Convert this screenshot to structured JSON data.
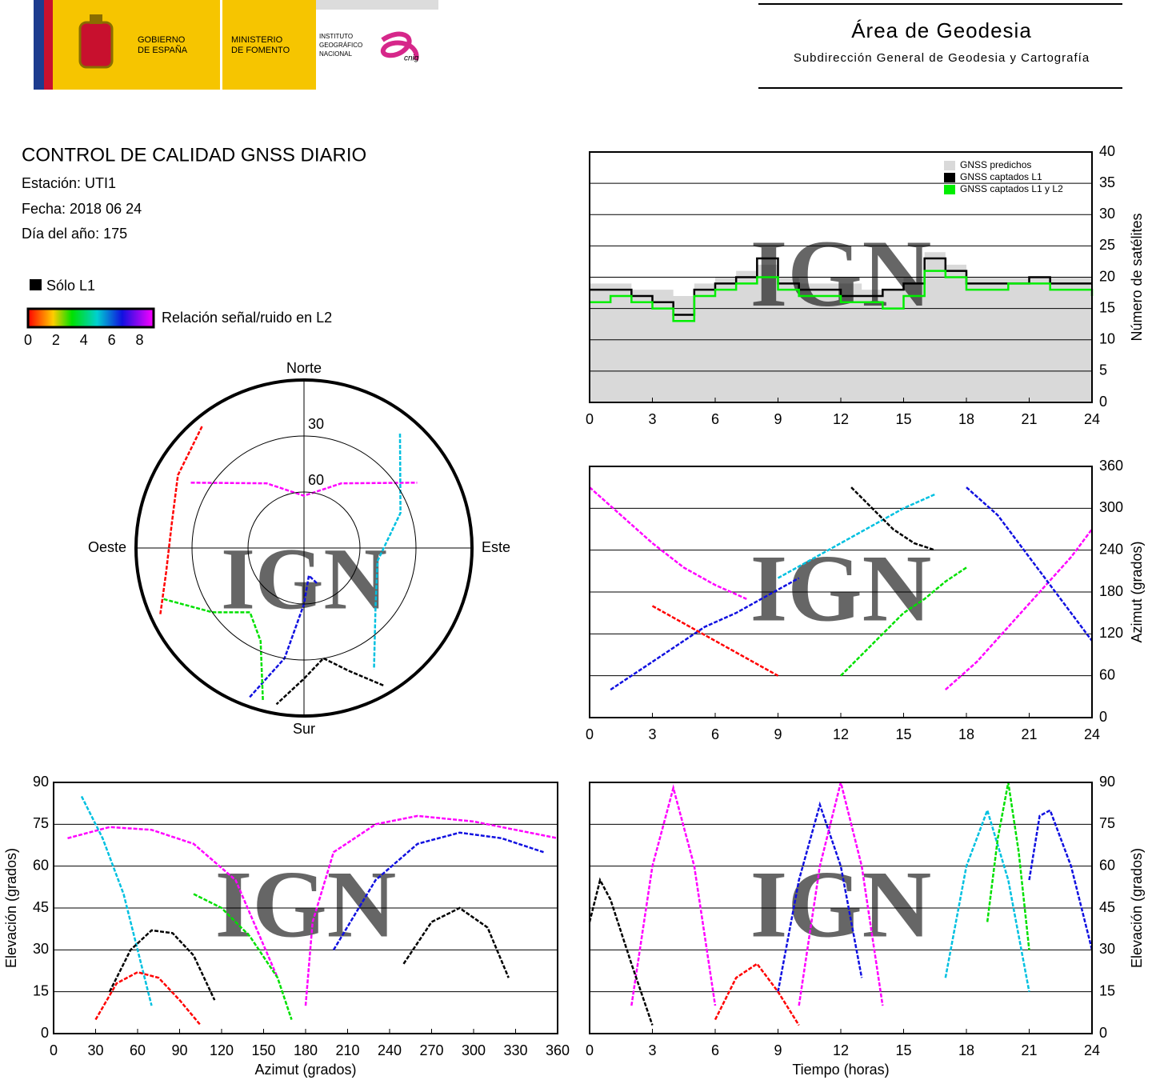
{
  "header": {
    "gobierno": [
      "GOBIERNO",
      "DE ESPAÑA"
    ],
    "ministerio": [
      "MINISTERIO",
      "DE FOMENTO"
    ],
    "instituto": [
      "INSTITUTO",
      "GEOGRÁFICO",
      "NACIONAL"
    ],
    "cnig": "cnig",
    "area": "Área de Geodesia",
    "subdireccion": "Subdirección General de Geodesia y Cartografía"
  },
  "report": {
    "title": "CONTROL DE CALIDAD GNSS DIARIO",
    "station": "Estación: UTI1",
    "date": "Fecha: 2018 06 24",
    "doy": "Día del año: 175"
  },
  "legend": {
    "only_l1": "Sólo L1",
    "snr_label": "Relación señal/ruido en L2",
    "snr_lim": [
      0,
      9
    ],
    "snr_ticks": [
      0,
      2,
      4,
      6,
      8
    ]
  },
  "watermark": "IGN",
  "chart_data": [
    {
      "type": "step",
      "ylabel": "Número de satélites",
      "x": [
        0,
        1,
        2,
        3,
        4,
        5,
        6,
        7,
        8,
        9,
        10,
        11,
        12,
        13,
        14,
        15,
        16,
        17,
        18,
        19,
        20,
        21,
        22,
        23,
        24
      ],
      "xlim": [
        0,
        24
      ],
      "xticks": [
        0,
        3,
        6,
        9,
        12,
        15,
        18,
        21,
        24
      ],
      "ylim": [
        0,
        40
      ],
      "yticks": [
        0,
        5,
        10,
        15,
        20,
        25,
        30,
        35,
        40
      ],
      "grid": true,
      "legend": "upper right",
      "series": [
        {
          "name": "GNSS predichos",
          "color": "#d9d9d9",
          "area": true,
          "values": [
            19,
            19,
            18,
            18,
            17,
            19,
            20,
            21,
            22,
            20,
            19,
            19,
            19,
            18,
            18,
            20,
            24,
            22,
            20,
            20,
            20,
            20,
            20,
            20,
            20
          ]
        },
        {
          "name": "GNSS captados L1",
          "color": "#000000",
          "values": [
            18,
            18,
            17,
            16,
            14,
            18,
            19,
            20,
            23,
            19,
            18,
            18,
            17,
            17,
            18,
            19,
            23,
            21,
            19,
            19,
            19,
            20,
            19,
            19,
            19
          ]
        },
        {
          "name": "GNSS captados L1 y L2",
          "color": "#00ee00",
          "values": [
            16,
            17,
            16,
            15,
            13,
            17,
            18,
            19,
            20,
            18,
            17,
            17,
            16,
            16,
            15,
            17,
            21,
            20,
            18,
            18,
            19,
            19,
            18,
            18,
            17
          ]
        }
      ]
    },
    {
      "type": "line",
      "ylabel": "Azimut (grados)",
      "xlim": [
        0,
        24
      ],
      "xticks": [
        0,
        3,
        6,
        9,
        12,
        15,
        18,
        21,
        24
      ],
      "ylim": [
        0,
        360
      ],
      "yticks": [
        0,
        60,
        120,
        180,
        240,
        300,
        360
      ],
      "grid": true,
      "series": [
        {
          "color": "#ff00ff",
          "x": [
            0,
            1.5,
            3,
            4.5,
            6,
            7.5
          ],
          "values": [
            330,
            290,
            250,
            215,
            190,
            170
          ]
        },
        {
          "color": "#1010e0",
          "x": [
            1,
            2.5,
            4,
            5.5,
            7,
            8.5,
            10
          ],
          "values": [
            40,
            70,
            100,
            130,
            150,
            175,
            200
          ]
        },
        {
          "color": "#00c0e0",
          "x": [
            9,
            10.5,
            12,
            13.5,
            15,
            16.5
          ],
          "values": [
            200,
            225,
            250,
            275,
            300,
            320
          ]
        },
        {
          "color": "#00e000",
          "x": [
            12,
            13,
            14,
            15,
            16,
            17,
            18
          ],
          "values": [
            60,
            90,
            120,
            150,
            170,
            195,
            215
          ]
        },
        {
          "color": "#ff0000",
          "x": [
            3,
            4.5,
            6,
            7.5,
            9
          ],
          "values": [
            160,
            135,
            110,
            85,
            60
          ]
        },
        {
          "color": "#000000",
          "x": [
            12.5,
            13.5,
            14.5,
            15.5,
            16.5
          ],
          "values": [
            330,
            300,
            270,
            250,
            240
          ]
        },
        {
          "color": "#ff00ff",
          "x": [
            17,
            18.5,
            20,
            21.5,
            23,
            24
          ],
          "values": [
            40,
            80,
            130,
            180,
            230,
            270
          ]
        },
        {
          "color": "#1010e0",
          "x": [
            18,
            19.5,
            21,
            22.5,
            24
          ],
          "values": [
            330,
            290,
            230,
            170,
            110
          ]
        }
      ]
    },
    {
      "type": "polar",
      "directions": [
        "Norte",
        "Este",
        "Sur",
        "Oeste"
      ],
      "rticks": [
        30,
        60
      ],
      "series": [
        {
          "color": "#ff00ff",
          "az": [
            300,
            330,
            0,
            30,
            60
          ],
          "el": [
            20,
            50,
            62,
            50,
            20
          ]
        },
        {
          "color": "#1010e0",
          "az": [
            200,
            190,
            180,
            170,
            160
          ],
          "el": [
            5,
            30,
            60,
            75,
            70
          ]
        },
        {
          "color": "#00c0e0",
          "az": [
            40,
            70,
            100,
            130,
            150
          ],
          "el": [
            10,
            35,
            50,
            40,
            15
          ]
        },
        {
          "color": "#00e000",
          "az": [
            250,
            235,
            220,
            205,
            195
          ],
          "el": [
            10,
            30,
            45,
            35,
            5
          ]
        },
        {
          "color": "#ff0000",
          "az": [
            320,
            300,
            280,
            260,
            245
          ],
          "el": [
            5,
            12,
            18,
            15,
            5
          ]
        },
        {
          "color": "#000000",
          "az": [
            150,
            160,
            170,
            180,
            190
          ],
          "el": [
            5,
            20,
            30,
            20,
            5
          ]
        }
      ]
    },
    {
      "type": "line",
      "xlabel": "Azimut (grados)",
      "ylabel": "Elevación (grados)",
      "xlim": [
        0,
        360
      ],
      "xticks": [
        0,
        30,
        60,
        90,
        120,
        150,
        180,
        210,
        240,
        270,
        300,
        330,
        360
      ],
      "ylim": [
        0,
        90
      ],
      "yticks": [
        0,
        15,
        30,
        45,
        60,
        75,
        90
      ],
      "grid": true,
      "series": [
        {
          "color": "#ff00ff",
          "x": [
            10,
            40,
            70,
            100,
            130,
            160
          ],
          "values": [
            70,
            74,
            73,
            68,
            55,
            20
          ]
        },
        {
          "color": "#1010e0",
          "x": [
            200,
            230,
            260,
            290,
            320,
            350
          ],
          "values": [
            30,
            55,
            68,
            72,
            70,
            65
          ]
        },
        {
          "color": "#00c0e0",
          "x": [
            20,
            35,
            50,
            60,
            70
          ],
          "values": [
            85,
            70,
            50,
            30,
            10
          ]
        },
        {
          "color": "#00e000",
          "x": [
            100,
            120,
            140,
            160,
            170
          ],
          "values": [
            50,
            45,
            35,
            20,
            5
          ]
        },
        {
          "color": "#ff0000",
          "x": [
            30,
            45,
            60,
            75,
            90,
            105
          ],
          "values": [
            5,
            18,
            22,
            20,
            12,
            3
          ]
        },
        {
          "color": "#000000",
          "x": [
            40,
            55,
            70,
            85,
            100,
            115
          ],
          "values": [
            15,
            30,
            37,
            36,
            28,
            12
          ]
        },
        {
          "color": "#000000",
          "x": [
            250,
            270,
            290,
            310,
            325
          ],
          "values": [
            25,
            40,
            45,
            38,
            20
          ]
        },
        {
          "color": "#ff00ff",
          "x": [
            180,
            185,
            200,
            230,
            260,
            300,
            340,
            360
          ],
          "values": [
            10,
            40,
            65,
            75,
            78,
            76,
            72,
            70
          ]
        }
      ]
    },
    {
      "type": "line",
      "xlabel": "Tiempo (horas)",
      "ylabel": "Elevación (grados)",
      "xlim": [
        0,
        24
      ],
      "xticks": [
        0,
        3,
        6,
        9,
        12,
        15,
        18,
        21,
        24
      ],
      "ylim": [
        0,
        90
      ],
      "yticks": [
        0,
        15,
        30,
        45,
        60,
        75,
        90
      ],
      "grid": true,
      "series": [
        {
          "color": "#ff00ff",
          "x": [
            2,
            3,
            4,
            5,
            6
          ],
          "values": [
            10,
            60,
            88,
            60,
            10
          ]
        },
        {
          "color": "#1010e0",
          "x": [
            9,
            10,
            11,
            12,
            13
          ],
          "values": [
            15,
            55,
            82,
            60,
            20
          ]
        },
        {
          "color": "#00c0e0",
          "x": [
            17,
            18,
            19,
            20,
            21
          ],
          "values": [
            20,
            60,
            80,
            55,
            15
          ]
        },
        {
          "color": "#00e000",
          "x": [
            19,
            19.5,
            20,
            20.5,
            21
          ],
          "values": [
            40,
            70,
            90,
            65,
            30
          ]
        },
        {
          "color": "#ff0000",
          "x": [
            6,
            7,
            8,
            9,
            10
          ],
          "values": [
            5,
            20,
            25,
            15,
            3
          ]
        },
        {
          "color": "#000000",
          "x": [
            0,
            0.5,
            1,
            2,
            3
          ],
          "values": [
            40,
            55,
            48,
            25,
            3
          ]
        },
        {
          "color": "#ff00ff",
          "x": [
            10,
            11,
            12,
            13,
            14
          ],
          "values": [
            10,
            60,
            90,
            60,
            10
          ]
        },
        {
          "color": "#1010e0",
          "x": [
            21,
            21.5,
            22,
            23,
            24
          ],
          "values": [
            55,
            78,
            80,
            60,
            30
          ]
        }
      ]
    }
  ]
}
